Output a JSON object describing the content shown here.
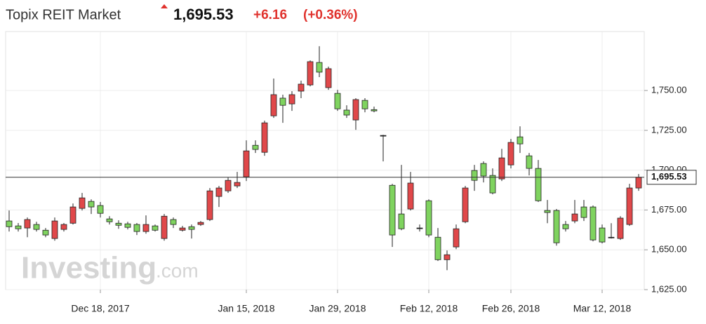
{
  "chart_data": {
    "type": "candlestick",
    "title": "Topix REIT Market",
    "last_price": {
      "value": 1695.53,
      "label": "1,695.53"
    },
    "change": "+6.16",
    "change_percent": "(+0.36%)",
    "watermark": {
      "brand": "Investing",
      "suffix": ".com"
    },
    "up_color": "#e0484a",
    "down_color": "#7fd35f",
    "categories": [
      null,
      null,
      null,
      null,
      null,
      null,
      null,
      null,
      null,
      null,
      "Dec 18, 2017",
      null,
      null,
      null,
      null,
      null,
      null,
      null,
      null,
      null,
      null,
      null,
      null,
      null,
      null,
      null,
      "Jan 15, 2018",
      null,
      null,
      null,
      null,
      null,
      null,
      null,
      null,
      null,
      "Jan 29, 2018",
      null,
      null,
      null,
      null,
      null,
      null,
      null,
      null,
      null,
      "Feb 12, 2018",
      null,
      null,
      null,
      null,
      null,
      null,
      null,
      null,
      "Feb 26, 2018",
      null,
      null,
      null,
      null,
      null,
      null,
      null,
      null,
      null,
      "Mar 12, 2018",
      null,
      null,
      null,
      null
    ],
    "open": [
      1668.1,
      1665.0,
      1663.7,
      1665.9,
      1662.3,
      1657.1,
      1662.8,
      1666.7,
      1676.0,
      1680.4,
      1677.8,
      1669.4,
      1666.7,
      1666.3,
      1665.9,
      1661.5,
      1665.0,
      1657.1,
      1669.0,
      1662.3,
      1664.5,
      1665.9,
      1669.0,
      1683.5,
      1687.0,
      1690.1,
      1695.8,
      1715.6,
      1711.2,
      1734.1,
      1745.2,
      1741.6,
      1749.6,
      1753.5,
      1767.6,
      1751.8,
      1748.2,
      1737.7,
      1731.5,
      1743.8,
      1738.0,
      1721.8,
      1690.5,
      1672.5,
      1675.6,
      1663.7,
      1680.8,
      1657.9,
      1643.8,
      1651.8,
      1667.6,
      1699.8,
      1704.2,
      1696.7,
      1694.5,
      1703.3,
      1720.9,
      1709.0,
      1701.1,
      1674.7,
      1674.7,
      1665.9,
      1668.1,
      1676.9,
      1676.9,
      1663.7,
      1657.9,
      1657.1,
      1665.9,
      1688.8
    ],
    "high": [
      1674.7,
      1666.8,
      1670.3,
      1667.6,
      1663.7,
      1670.3,
      1666.8,
      1679.1,
      1685.7,
      1681.7,
      1680.0,
      1671.1,
      1668.5,
      1667.6,
      1666.8,
      1671.6,
      1665.9,
      1672.5,
      1670.3,
      1665.0,
      1665.9,
      1668.1,
      1688.8,
      1690.1,
      1695.4,
      1698.9,
      1718.7,
      1718.7,
      1731.1,
      1757.5,
      1747.4,
      1749.6,
      1756.2,
      1768.9,
      1777.8,
      1765.0,
      1750.4,
      1740.7,
      1745.2,
      1745.2,
      1739.9,
      1722.2,
      1691.4,
      1703.3,
      1698.9,
      1665.9,
      1681.7,
      1663.7,
      1649.6,
      1665.9,
      1690.1,
      1703.3,
      1705.5,
      1701.1,
      1713.4,
      1719.6,
      1727.5,
      1710.8,
      1706.4,
      1681.3,
      1675.6,
      1668.1,
      1681.3,
      1681.3,
      1677.8,
      1665.9,
      1666.7,
      1671.1,
      1691.4,
      1697.6
    ],
    "low": [
      1661.5,
      1661.5,
      1657.9,
      1661.5,
      1657.9,
      1655.7,
      1661.5,
      1665.9,
      1674.7,
      1672.5,
      1670.3,
      1665.9,
      1663.2,
      1662.8,
      1659.3,
      1660.1,
      1661.5,
      1655.7,
      1663.7,
      1661.5,
      1657.1,
      1665.0,
      1668.1,
      1676.9,
      1685.7,
      1688.8,
      1693.2,
      1710.8,
      1709.0,
      1732.8,
      1729.7,
      1737.2,
      1745.2,
      1752.6,
      1758.4,
      1750.4,
      1737.2,
      1732.8,
      1725.3,
      1736.3,
      1736.3,
      1705.5,
      1651.8,
      1662.3,
      1674.7,
      1661.5,
      1657.9,
      1643.0,
      1637.2,
      1650.4,
      1666.7,
      1687.0,
      1692.3,
      1684.8,
      1693.2,
      1701.1,
      1710.8,
      1696.7,
      1680.0,
      1666.7,
      1652.6,
      1661.5,
      1666.7,
      1668.1,
      1655.3,
      1654.0,
      1657.1,
      1656.2,
      1665.0,
      1687.0
    ],
    "close": [
      1664.5,
      1663.2,
      1669.0,
      1662.8,
      1659.3,
      1668.1,
      1665.9,
      1676.9,
      1682.6,
      1676.9,
      1672.9,
      1667.6,
      1665.4,
      1664.1,
      1661.5,
      1665.9,
      1662.3,
      1671.1,
      1665.9,
      1663.7,
      1662.8,
      1667.2,
      1687.0,
      1688.8,
      1693.6,
      1692.3,
      1712.1,
      1713.0,
      1729.7,
      1747.4,
      1740.7,
      1747.4,
      1754.0,
      1768.1,
      1761.5,
      1763.7,
      1738.5,
      1734.6,
      1744.3,
      1738.5,
      1737.2,
      1721.8,
      1659.3,
      1663.2,
      1691.9,
      1663.7,
      1659.3,
      1643.8,
      1646.9,
      1663.2,
      1688.8,
      1693.6,
      1696.3,
      1685.7,
      1707.7,
      1717.4,
      1716.5,
      1701.1,
      1680.8,
      1673.4,
      1654.4,
      1663.2,
      1672.5,
      1670.3,
      1656.2,
      1654.9,
      1657.9,
      1669.9,
      1688.8,
      1695.53
    ],
    "ylim": [
      1625,
      1787
    ],
    "yticks": [
      {
        "value": 1625,
        "label": "1,625.00"
      },
      {
        "value": 1650,
        "label": "1,650.00"
      },
      {
        "value": 1675,
        "label": "1,675.00"
      },
      {
        "value": 1700,
        "label": "1,700.00"
      },
      {
        "value": 1725,
        "label": "1,725.00"
      },
      {
        "value": 1750,
        "label": "1,750.00"
      }
    ],
    "grid": true
  }
}
